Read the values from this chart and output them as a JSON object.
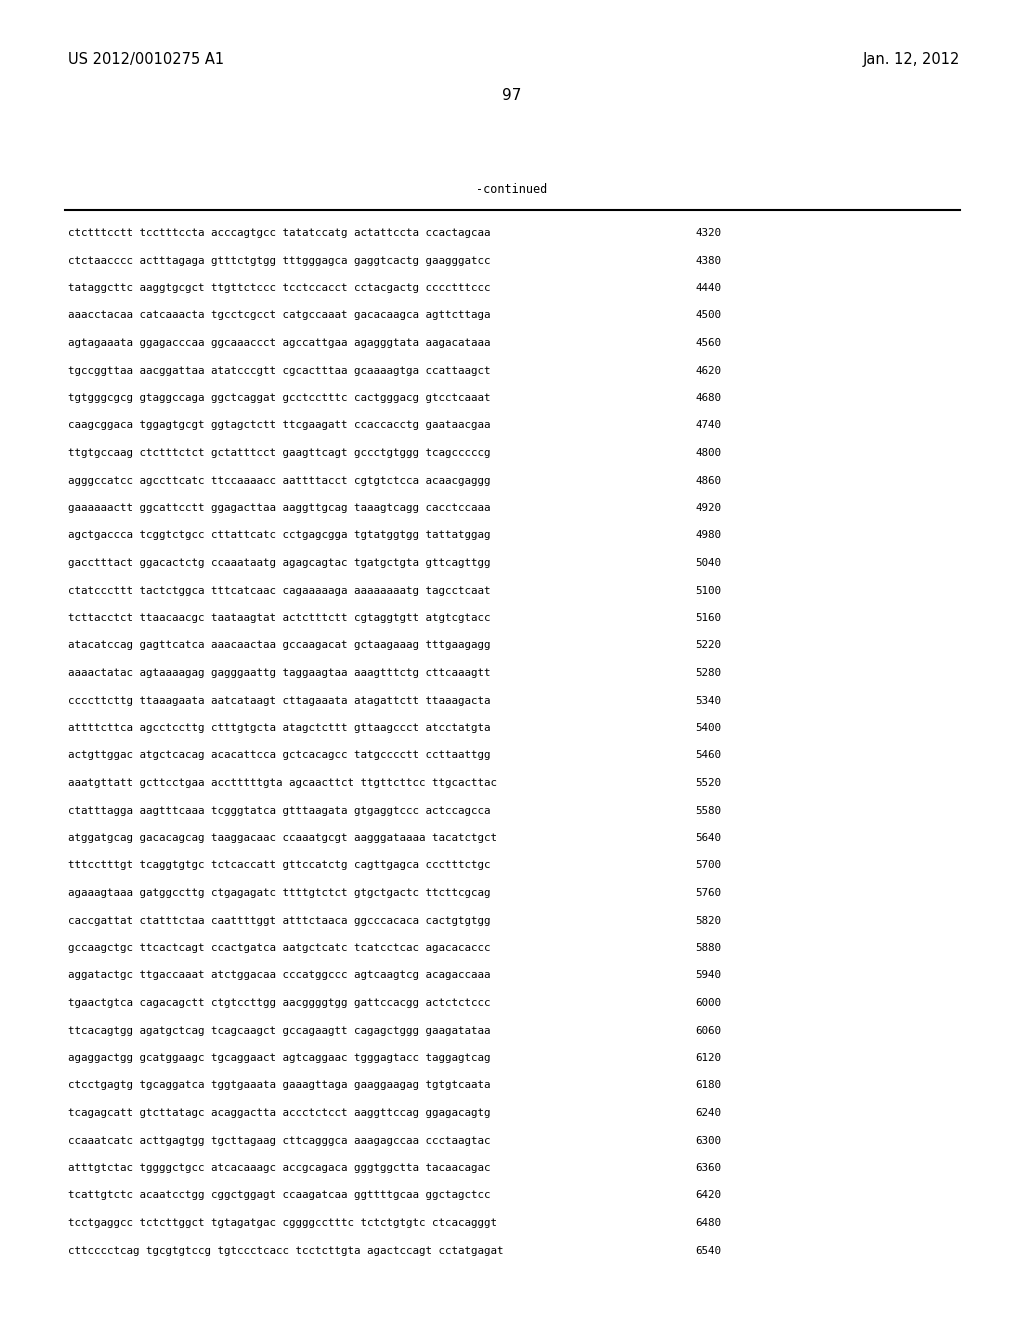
{
  "header_left": "US 2012/0010275 A1",
  "header_right": "Jan. 12, 2012",
  "page_number": "97",
  "continued_label": "-continued",
  "background_color": "#ffffff",
  "text_color": "#000000",
  "font_size_header": 10.5,
  "font_size_page": 11,
  "font_size_seq": 7.8,
  "font_size_continued": 8.5,
  "sequence_lines": [
    {
      "seq": "ctctttcctt tcctttccta acccagtgcc tatatccatg actattccta ccactagcaa",
      "num": "4320"
    },
    {
      "seq": "ctctaacccc actttagaga gtttctgtgg tttgggagca gaggtcactg gaagggatcc",
      "num": "4380"
    },
    {
      "seq": "tataggcttc aaggtgcgct ttgttctccc tcctccacct cctacgactg cccctttccc",
      "num": "4440"
    },
    {
      "seq": "aaacctacaa catcaaacta tgcctcgcct catgccaaat gacacaagca agttcttaga",
      "num": "4500"
    },
    {
      "seq": "agtagaaata ggagacccaa ggcaaaccct agccattgaa agagggtata aagacataaa",
      "num": "4560"
    },
    {
      "seq": "tgccggttaa aacggattaa atatcccgtt cgcactttaa gcaaaagtga ccattaagct",
      "num": "4620"
    },
    {
      "seq": "tgtgggcgcg gtaggccaga ggctcaggat gcctcctttc cactgggacg gtcctcaaat",
      "num": "4680"
    },
    {
      "seq": "caagcggaca tggagtgcgt ggtagctctt ttcgaagatt ccaccacctg gaataacgaa",
      "num": "4740"
    },
    {
      "seq": "ttgtgccaag ctctttctct gctatttcct gaagttcagt gccctgtggg tcagcccccg",
      "num": "4800"
    },
    {
      "seq": "agggccatcc agccttcatc ttccaaaacc aattttacct cgtgtctcca acaacgaggg",
      "num": "4860"
    },
    {
      "seq": "gaaaaaactt ggcattcctt ggagacttaa aaggttgcag taaagtcagg cacctccaaa",
      "num": "4920"
    },
    {
      "seq": "agctgaccca tcggtctgcc cttattcatc cctgagcgga tgtatggtgg tattatggag",
      "num": "4980"
    },
    {
      "seq": "gacctttact ggacactctg ccaaataatg agagcagtac tgatgctgta gttcagttgg",
      "num": "5040"
    },
    {
      "seq": "ctatcccttt tactctggca tttcatcaac cagaaaaaga aaaaaaaatg tagcctcaat",
      "num": "5100"
    },
    {
      "seq": "tcttacctct ttaacaacgc taataagtat actctttctt cgtaggtgtt atgtcgtacc",
      "num": "5160"
    },
    {
      "seq": "atacatccag gagttcatca aaacaactaa gccaagacat gctaagaaag tttgaagagg",
      "num": "5220"
    },
    {
      "seq": "aaaactatac agtaaaagag gagggaattg taggaagtaa aaagtttctg cttcaaagtt",
      "num": "5280"
    },
    {
      "seq": "ccccttcttg ttaaagaata aatcataagt cttagaaata atagattctt ttaaagacta",
      "num": "5340"
    },
    {
      "seq": "attttcttca agcctccttg ctttgtgcta atagctcttt gttaagccct atcctatgta",
      "num": "5400"
    },
    {
      "seq": "actgttggac atgctcacag acacattcca gctcacagcc tatgcccctt ccttaattgg",
      "num": "5460"
    },
    {
      "seq": "aaatgttatt gcttcctgaa acctttttgta agcaacttct ttgttcttcc ttgcacttac",
      "num": "5520"
    },
    {
      "seq": "ctatttagga aagtttcaaa tcgggtatca gtttaagata gtgaggtccc actccagcca",
      "num": "5580"
    },
    {
      "seq": "atggatgcag gacacagcag taaggacaac ccaaatgcgt aagggataaaa tacatctgct",
      "num": "5640"
    },
    {
      "seq": "tttcctttgt tcaggtgtgc tctcaccatt gttccatctg cagttgagca ccctttctgc",
      "num": "5700"
    },
    {
      "seq": "agaaagtaaa gatggccttg ctgagagatc ttttgtctct gtgctgactc ttcttcgcag",
      "num": "5760"
    },
    {
      "seq": "caccgattat ctatttctaa caattttggt atttctaaca ggcccacaca cactgtgtgg",
      "num": "5820"
    },
    {
      "seq": "gccaagctgc ttcactcagt ccactgatca aatgctcatc tcatcctcac agacacaccc",
      "num": "5880"
    },
    {
      "seq": "aggatactgc ttgaccaaat atctggacaa cccatggccc agtcaagtcg acagaccaaa",
      "num": "5940"
    },
    {
      "seq": "tgaactgtca cagacagctt ctgtccttgg aacggggtgg gattccacgg actctctccc",
      "num": "6000"
    },
    {
      "seq": "ttcacagtgg agatgctcag tcagcaagct gccagaagtt cagagctggg gaagatataa",
      "num": "6060"
    },
    {
      "seq": "agaggactgg gcatggaagc tgcaggaact agtcaggaac tgggagtacc taggagtcag",
      "num": "6120"
    },
    {
      "seq": "ctcctgagtg tgcaggatca tggtgaaata gaaagttaga gaaggaagag tgtgtcaata",
      "num": "6180"
    },
    {
      "seq": "tcagagcatt gtcttatagc acaggactta accctctcct aaggttccag ggagacagtg",
      "num": "6240"
    },
    {
      "seq": "ccaaatcatc acttgagtgg tgcttagaag cttcagggca aaagagccaa ccctaagtac",
      "num": "6300"
    },
    {
      "seq": "atttgtctac tggggctgcc atcacaaagc accgcagaca gggtggctta tacaacagac",
      "num": "6360"
    },
    {
      "seq": "tcattgtctc acaatcctgg cggctggagt ccaagatcaa ggttttgcaa ggctagctcc",
      "num": "6420"
    },
    {
      "seq": "tcctgaggcc tctcttggct tgtagatgac cggggcctttc tctctgtgtc ctcacagggt",
      "num": "6480"
    },
    {
      "seq": "cttcccctcag tgcgtgtccg tgtccctcacc tcctcttgta agactccagt cctatgagat",
      "num": "6540"
    }
  ]
}
